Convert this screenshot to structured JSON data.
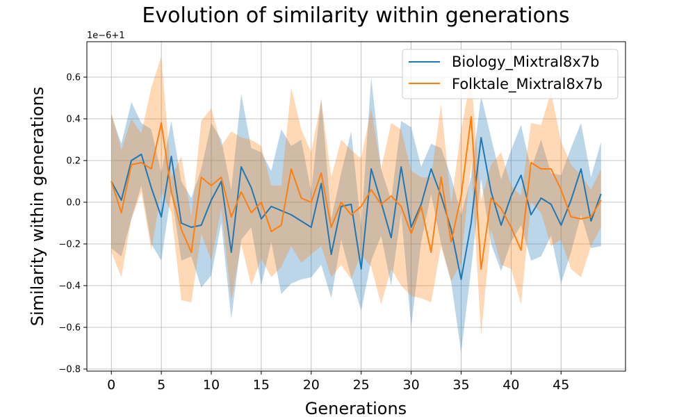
{
  "chart_data": {
    "type": "line",
    "title": "Evolution of similarity within generations",
    "xlabel": "Generations",
    "ylabel": "Similarity within generations",
    "y_offset_label": "1e−6+1",
    "y_offset": {
      "scale": 1e-06,
      "add": 1
    },
    "xlim": [
      -2.45,
      51.45
    ],
    "ylim": [
      -0.81,
      0.77
    ],
    "xticks": [
      0,
      5,
      10,
      15,
      20,
      25,
      30,
      35,
      40,
      45
    ],
    "xtick_labels": [
      "0",
      "5",
      "10",
      "15",
      "20",
      "25",
      "30",
      "35",
      "40",
      "45"
    ],
    "yticks": [
      -0.8,
      -0.6,
      -0.4,
      -0.2,
      0.0,
      0.2,
      0.4,
      0.6
    ],
    "ytick_labels": [
      "−0.8",
      "−0.6",
      "−0.4",
      "−0.2",
      "0.0",
      "0.2",
      "0.4",
      "0.6"
    ],
    "grid": true,
    "legend_position": "top-right",
    "x": [
      0,
      1,
      2,
      3,
      4,
      5,
      6,
      7,
      8,
      9,
      10,
      11,
      12,
      13,
      14,
      15,
      16,
      17,
      18,
      19,
      20,
      21,
      22,
      23,
      24,
      25,
      26,
      27,
      28,
      29,
      30,
      31,
      32,
      33,
      34,
      35,
      36,
      37,
      38,
      39,
      40,
      41,
      42,
      43,
      44,
      45,
      46,
      47,
      48,
      49
    ],
    "series": [
      {
        "name": "Biology_Mixtral8x7b",
        "color": "#1f77b4",
        "fill_color": "#1f77b4",
        "values": [
          0.1,
          0.01,
          0.2,
          0.23,
          0.07,
          -0.07,
          0.22,
          -0.1,
          -0.12,
          -0.11,
          0.01,
          0.1,
          -0.24,
          0.17,
          0.07,
          -0.08,
          -0.02,
          -0.04,
          -0.06,
          -0.09,
          -0.12,
          0.09,
          -0.25,
          -0.02,
          -0.01,
          -0.32,
          0.16,
          0.0,
          -0.17,
          0.17,
          -0.12,
          -0.01,
          0.16,
          0.03,
          -0.13,
          -0.37,
          -0.1,
          0.31,
          0.05,
          -0.11,
          0.03,
          0.13,
          -0.06,
          0.02,
          -0.01,
          -0.11,
          0.01,
          0.16,
          -0.09,
          0.04
        ],
        "upper": [
          0.42,
          0.28,
          0.48,
          0.38,
          0.35,
          0.14,
          0.39,
          0.1,
          0.02,
          0.16,
          0.38,
          0.3,
          0.06,
          0.52,
          0.26,
          0.24,
          0.15,
          0.35,
          0.27,
          0.3,
          0.05,
          0.5,
          -0.08,
          0.14,
          0.34,
          -0.12,
          0.6,
          0.16,
          0.01,
          0.39,
          0.36,
          0.17,
          0.28,
          0.26,
          0.12,
          -0.06,
          0.12,
          0.51,
          0.31,
          0.11,
          0.25,
          0.37,
          0.16,
          0.3,
          0.14,
          0.13,
          0.26,
          0.38,
          0.12,
          0.29
        ],
        "lower": [
          -0.22,
          -0.26,
          -0.08,
          0.08,
          -0.2,
          -0.28,
          0.05,
          -0.28,
          -0.26,
          -0.41,
          -0.35,
          -0.1,
          -0.56,
          -0.18,
          -0.12,
          -0.4,
          -0.19,
          -0.44,
          -0.39,
          -0.37,
          -0.36,
          -0.3,
          -0.46,
          -0.18,
          -0.36,
          -0.52,
          -0.28,
          -0.16,
          -0.4,
          -0.05,
          -0.6,
          -0.19,
          0.04,
          -0.2,
          -0.38,
          -0.72,
          -0.32,
          0.11,
          -0.2,
          -0.33,
          -0.19,
          -0.11,
          -0.28,
          -0.26,
          -0.16,
          -0.39,
          -0.24,
          -0.06,
          -0.22,
          -0.21
        ]
      },
      {
        "name": "Folktale_Mixtral8x7b",
        "color": "#ff7f0e",
        "fill_color": "#ff7f0e",
        "values": [
          0.1,
          -0.05,
          0.18,
          0.19,
          0.16,
          0.38,
          0.05,
          -0.13,
          -0.24,
          0.12,
          0.08,
          0.12,
          -0.07,
          0.05,
          -0.05,
          0.0,
          -0.14,
          -0.11,
          0.16,
          0.02,
          0.0,
          0.14,
          -0.12,
          0.0,
          -0.06,
          -0.02,
          0.06,
          -0.01,
          0.03,
          -0.02,
          -0.15,
          -0.02,
          -0.24,
          0.12,
          -0.19,
          0.03,
          0.41,
          -0.32,
          0.02,
          -0.03,
          -0.12,
          -0.23,
          0.19,
          0.16,
          0.16,
          0.06,
          -0.07,
          -0.08,
          -0.07,
          0.01
        ],
        "upper": [
          0.43,
          0.25,
          0.4,
          0.33,
          0.55,
          0.7,
          0.12,
          0.22,
          -0.07,
          0.39,
          0.45,
          0.27,
          0.34,
          0.31,
          0.3,
          0.27,
          0.08,
          0.08,
          0.55,
          0.35,
          0.24,
          0.49,
          0.12,
          0.3,
          0.25,
          0.21,
          0.45,
          0.16,
          0.38,
          0.35,
          0.15,
          0.12,
          0.12,
          0.47,
          -0.01,
          0.35,
          0.6,
          0.01,
          0.18,
          0.24,
          0.08,
          0.03,
          0.38,
          0.37,
          0.53,
          0.29,
          0.18,
          0.13,
          0.06,
          0.16
        ],
        "lower": [
          -0.24,
          -0.36,
          -0.08,
          0.05,
          -0.23,
          0.05,
          -0.05,
          -0.47,
          -0.48,
          -0.15,
          -0.28,
          -0.03,
          -0.47,
          -0.2,
          -0.4,
          -0.27,
          -0.36,
          -0.31,
          -0.21,
          -0.29,
          -0.25,
          -0.21,
          -0.36,
          -0.3,
          -0.37,
          -0.25,
          -0.31,
          -0.49,
          -0.32,
          -0.4,
          -0.45,
          -0.46,
          -0.48,
          -0.21,
          -0.38,
          -0.29,
          0.19,
          -0.64,
          -0.13,
          -0.3,
          -0.32,
          -0.49,
          0.0,
          -0.05,
          -0.21,
          -0.18,
          -0.32,
          -0.36,
          -0.21,
          -0.12
        ]
      }
    ]
  }
}
